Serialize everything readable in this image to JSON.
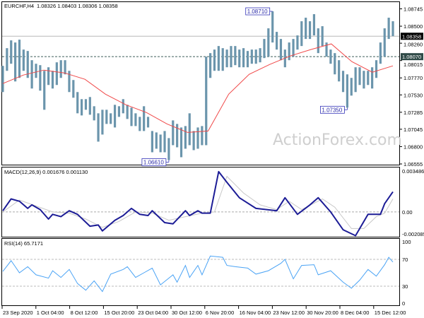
{
  "header": {
    "symbol": "EURCHF,H4",
    "ohlc": "1.08326 1.08403 1.08306 1.08358"
  },
  "watermark": "ActionForex.com",
  "colors": {
    "bars": "#6b95ac",
    "ma": "#f04848",
    "macd": "#1c1c96",
    "signal": "#c8c8c8",
    "rsi": "#4aa3f5",
    "label_border": "#3434b8",
    "current_price_bg": "#000000",
    "level_bg": "#2f4a47"
  },
  "chart_data": [
    {
      "type": "bar",
      "panel": "price",
      "title": "EURCHF,H4",
      "ylim": [
        1.06535,
        1.0884
      ],
      "y_ticks": [
        "1.08745",
        "1.08500",
        "1.08260",
        "1.08015",
        "1.07770",
        "1.07530",
        "1.07285",
        "1.07045",
        "1.06800",
        "1.06555"
      ],
      "current_price": "1.08358",
      "level_line": "1.08070",
      "x_ticks": [
        "23 Sep 2020",
        "1 Oct 04:00",
        "8 Oct 12:00",
        "15 Oct 20:00",
        "23 Oct 04:00",
        "30 Oct 12:00",
        "6 Nov 20:00",
        "16 Nov 04:00",
        "23 Nov 12:00",
        "30 Nov 20:00",
        "8 Dec 04:00",
        "15 Dec 12:00"
      ],
      "bars_high_low": [
        [
          1.0794,
          1.0757
        ],
        [
          1.0819,
          1.0787
        ],
        [
          1.083,
          1.0797
        ],
        [
          1.0827,
          1.0772
        ],
        [
          1.0831,
          1.0777
        ],
        [
          1.0817,
          1.0787
        ],
        [
          1.0815,
          1.0777
        ],
        [
          1.0802,
          1.0762
        ],
        [
          1.0797,
          1.0777
        ],
        [
          1.0795,
          1.0759
        ],
        [
          1.0787,
          1.0732
        ],
        [
          1.0792,
          1.0767
        ],
        [
          1.0787,
          1.0762
        ],
        [
          1.0799,
          1.0767
        ],
        [
          1.0802,
          1.0777
        ],
        [
          1.0802,
          1.0782
        ],
        [
          1.0787,
          1.0757
        ],
        [
          1.0774,
          1.0749
        ],
        [
          1.0757,
          1.0727
        ],
        [
          1.0747,
          1.0724
        ],
        [
          1.0747,
          1.0732
        ],
        [
          1.075,
          1.0725
        ],
        [
          1.0737,
          1.0717
        ],
        [
          1.0727,
          1.0687
        ],
        [
          1.0732,
          1.0697
        ],
        [
          1.0732,
          1.0712
        ],
        [
          1.0727,
          1.0712
        ],
        [
          1.0739,
          1.0707
        ],
        [
          1.0737,
          1.0722
        ],
        [
          1.0747,
          1.0727
        ],
        [
          1.0739,
          1.0719
        ],
        [
          1.0735,
          1.0709
        ],
        [
          1.0727,
          1.0709
        ],
        [
          1.0722,
          1.0702
        ],
        [
          1.0737,
          1.0702
        ],
        [
          1.0722,
          1.0707
        ],
        [
          1.0702,
          1.0672
        ],
        [
          1.07,
          1.0677
        ],
        [
          1.0697,
          1.0672
        ],
        [
          1.0702,
          1.0672
        ],
        [
          1.0692,
          1.0661
        ],
        [
          1.0717,
          1.0682
        ],
        [
          1.0712,
          1.0679
        ],
        [
          1.0707,
          1.0665
        ],
        [
          1.0709,
          1.0677
        ],
        [
          1.0727,
          1.0682
        ],
        [
          1.0702,
          1.0675
        ],
        [
          1.0707,
          1.0677
        ],
        [
          1.0709,
          1.0682
        ],
        [
          1.0807,
          1.0682
        ],
        [
          1.0812,
          1.0777
        ],
        [
          1.0817,
          1.0787
        ],
        [
          1.0822,
          1.0787
        ],
        [
          1.0819,
          1.0787
        ],
        [
          1.0817,
          1.0792
        ],
        [
          1.0822,
          1.0792
        ],
        [
          1.0822,
          1.0795
        ],
        [
          1.0817,
          1.0792
        ],
        [
          1.0819,
          1.0792
        ],
        [
          1.0815,
          1.0792
        ],
        [
          1.0817,
          1.0797
        ],
        [
          1.0817,
          1.0797
        ],
        [
          1.0819,
          1.0799
        ],
        [
          1.0832,
          1.0805
        ],
        [
          1.0847,
          1.0807
        ],
        [
          1.0871,
          1.0827
        ],
        [
          1.0842,
          1.0817
        ],
        [
          1.0832,
          1.0802
        ],
        [
          1.0817,
          1.0792
        ],
        [
          1.0827,
          1.0802
        ],
        [
          1.0832,
          1.0807
        ],
        [
          1.0837,
          1.0817
        ],
        [
          1.0857,
          1.0822
        ],
        [
          1.0862,
          1.0832
        ],
        [
          1.0857,
          1.0832
        ],
        [
          1.0867,
          1.0837
        ],
        [
          1.0847,
          1.0812
        ],
        [
          1.085,
          1.0822
        ],
        [
          1.0827,
          1.0807
        ],
        [
          1.0817,
          1.0797
        ],
        [
          1.0812,
          1.0782
        ],
        [
          1.0802,
          1.0772
        ],
        [
          1.0787,
          1.0757
        ],
        [
          1.0782,
          1.0735
        ],
        [
          1.0777,
          1.0752
        ],
        [
          1.0792,
          1.0757
        ],
        [
          1.0792,
          1.0767
        ],
        [
          1.0787,
          1.0762
        ],
        [
          1.0787,
          1.0767
        ],
        [
          1.0792,
          1.0762
        ],
        [
          1.0802,
          1.0777
        ],
        [
          1.0827,
          1.0797
        ],
        [
          1.0847,
          1.0807
        ],
        [
          1.0862,
          1.0832
        ],
        [
          1.0857,
          1.0836
        ]
      ],
      "moving_average": [
        1.0769,
        1.0781,
        1.0788,
        1.0784,
        1.0775,
        1.0754,
        1.0739,
        1.0728,
        1.0712,
        1.07,
        1.0702,
        1.0754,
        1.0782,
        1.0796,
        1.0808,
        1.0817,
        1.0825,
        1.08,
        1.0785,
        1.0794
      ],
      "annotations": [
        {
          "text": "1.06610",
          "bar": 40,
          "price": 1.0661,
          "position": "left-below"
        },
        {
          "text": "1.08710",
          "bar": 65,
          "price": 1.0871,
          "position": "right-above"
        },
        {
          "text": "1.07350",
          "bar": 83,
          "price": 1.0735,
          "position": "left-below"
        }
      ]
    },
    {
      "type": "line",
      "panel": "macd",
      "title": "MACD(12,26,9) 0.001676 0.001130",
      "ylim": [
        -0.00215,
        0.00375
      ],
      "y_ticks": [
        "0.003486",
        "0.00",
        "-0.002085"
      ],
      "tick_values": [
        0.003486,
        0,
        -0.002085
      ],
      "macd": [
        [
          0,
          0.0001
        ],
        [
          2,
          0.0011
        ],
        [
          4,
          0.0009
        ],
        [
          6,
          0.0003
        ],
        [
          7,
          0.0006
        ],
        [
          9,
          0.0002
        ],
        [
          11,
          -0.0006
        ],
        [
          12,
          -0.0002
        ],
        [
          14,
          -0.0004
        ],
        [
          16,
          0.0001
        ],
        [
          18,
          -0.0002
        ],
        [
          21,
          -0.0012
        ],
        [
          23,
          -0.0011
        ],
        [
          24,
          -0.0016
        ],
        [
          27,
          -0.0007
        ],
        [
          29,
          -0.0003
        ],
        [
          31,
          0.0003
        ],
        [
          33,
          -0.0002
        ],
        [
          35,
          -0.0003
        ],
        [
          36,
          0.0001
        ],
        [
          39,
          -0.0009
        ],
        [
          41,
          -0.001
        ],
        [
          44,
          0.0001
        ],
        [
          45,
          -0.0003
        ],
        [
          47,
          0.0001
        ],
        [
          48,
          -0.0001
        ],
        [
          50,
          -0.0001
        ],
        [
          52,
          0.0034
        ],
        [
          54,
          0.0025
        ],
        [
          57,
          0.0012
        ],
        [
          61,
          0.0003
        ],
        [
          66,
          0.0001
        ],
        [
          68,
          0.0012
        ],
        [
          71,
          -0.0002
        ],
        [
          74,
          0.0006
        ],
        [
          76,
          0.0012
        ],
        [
          79,
          0.0
        ],
        [
          82,
          -0.0015
        ],
        [
          85,
          -0.002
        ],
        [
          88,
          -0.0002
        ],
        [
          91,
          -0.0002
        ],
        [
          92,
          0.0007
        ],
        [
          94,
          0.0017
        ]
      ],
      "signal": [
        [
          0,
          0.0
        ],
        [
          4,
          0.001
        ],
        [
          8,
          0.0005
        ],
        [
          12,
          0.0
        ],
        [
          16,
          -0.0001
        ],
        [
          20,
          -0.0006
        ],
        [
          24,
          -0.0013
        ],
        [
          28,
          -0.0008
        ],
        [
          32,
          0.0
        ],
        [
          36,
          -0.0001
        ],
        [
          40,
          -0.0007
        ],
        [
          44,
          -0.0004
        ],
        [
          48,
          -0.0001
        ],
        [
          51,
          0.0
        ],
        [
          54,
          0.003
        ],
        [
          58,
          0.0016
        ],
        [
          62,
          0.0006
        ],
        [
          66,
          0.0002
        ],
        [
          69,
          0.0009
        ],
        [
          72,
          0.0002
        ],
        [
          77,
          0.0011
        ],
        [
          80,
          0.0004
        ],
        [
          84,
          -0.0014
        ],
        [
          87,
          -0.0014
        ],
        [
          90,
          -0.0004
        ],
        [
          92,
          -0.0001
        ],
        [
          94,
          0.0011
        ]
      ]
    },
    {
      "type": "line",
      "panel": "rsi",
      "title": "RSI(14) 65.7171",
      "ylim": [
        0,
        100
      ],
      "y_ticks": [
        "100",
        "70",
        "30",
        "0"
      ],
      "tick_values": [
        100,
        70,
        30,
        0
      ],
      "rsi": [
        [
          0,
          52
        ],
        [
          2,
          68
        ],
        [
          3,
          59
        ],
        [
          4,
          50
        ],
        [
          6,
          59
        ],
        [
          8,
          47
        ],
        [
          11,
          42
        ],
        [
          12,
          53
        ],
        [
          14,
          43
        ],
        [
          16,
          55
        ],
        [
          18,
          34
        ],
        [
          20,
          24
        ],
        [
          22,
          38
        ],
        [
          24,
          22
        ],
        [
          26,
          48
        ],
        [
          29,
          55
        ],
        [
          30,
          59
        ],
        [
          32,
          43
        ],
        [
          34,
          50
        ],
        [
          36,
          57
        ],
        [
          38,
          32
        ],
        [
          41,
          47
        ],
        [
          42,
          36
        ],
        [
          44,
          61
        ],
        [
          45,
          43
        ],
        [
          47,
          61
        ],
        [
          48,
          47
        ],
        [
          50,
          75
        ],
        [
          53,
          73
        ],
        [
          54,
          61
        ],
        [
          56,
          59
        ],
        [
          59,
          57
        ],
        [
          61,
          48
        ],
        [
          64,
          53
        ],
        [
          67,
          64
        ],
        [
          68,
          70
        ],
        [
          70,
          41
        ],
        [
          72,
          61
        ],
        [
          75,
          62
        ],
        [
          76,
          47
        ],
        [
          79,
          53
        ],
        [
          82,
          36
        ],
        [
          84,
          27
        ],
        [
          86,
          39
        ],
        [
          88,
          55
        ],
        [
          90,
          45
        ],
        [
          92,
          62
        ],
        [
          93,
          73
        ],
        [
          94,
          66
        ]
      ]
    }
  ]
}
